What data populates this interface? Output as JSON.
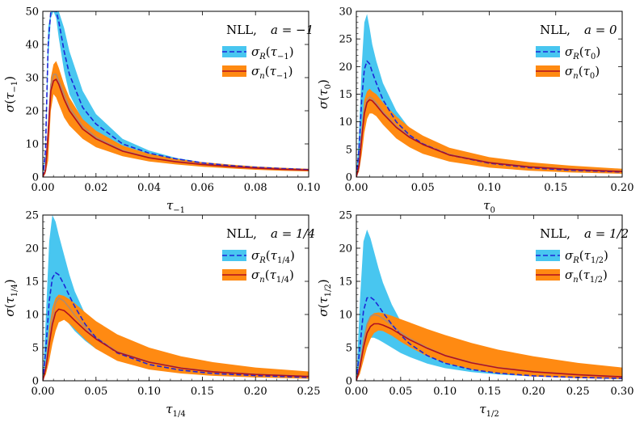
{
  "chart_data": [
    {
      "type": "line",
      "title": "NLL, a = −1",
      "legend": {
        "title": "NLL,",
        "param": "a = −1",
        "placement": "top-right",
        "entries": [
          "σR(τ−1)",
          "σn(τ−1)"
        ]
      },
      "xlabel": "τ−1",
      "ylabel": "σ(τ−1)",
      "xlim": [
        0,
        0.1
      ],
      "ylim": [
        0,
        50
      ],
      "xticks": [
        0,
        0.02,
        0.04,
        0.06,
        0.08,
        0.1
      ],
      "xtick_labels": [
        "0.00",
        "0.02",
        "0.04",
        "0.06",
        "0.08",
        "0.10"
      ],
      "yticks": [
        0,
        10,
        20,
        30,
        40,
        50
      ],
      "ytick_labels": [
        "0",
        "10",
        "20",
        "30",
        "40",
        "50"
      ],
      "x": [
        0,
        0.001,
        0.002,
        0.003,
        0.004,
        0.005,
        0.006,
        0.008,
        0.01,
        0.015,
        0.02,
        0.03,
        0.04,
        0.05,
        0.06,
        0.07,
        0.08,
        0.09,
        0.1
      ],
      "series": [
        {
          "name": "σR band",
          "role": "band",
          "color": "#48c6f0",
          "lower": [
            0,
            5,
            35,
            48,
            50,
            48,
            42,
            32,
            25,
            17,
            13,
            8.7,
            6.5,
            5.1,
            4.1,
            3.4,
            2.9,
            2.5,
            2.2
          ],
          "upper": [
            0,
            8,
            45,
            50,
            50,
            50,
            50,
            45,
            38,
            26,
            19,
            11.5,
            8.0,
            5.8,
            4.5,
            3.6,
            3.0,
            2.6,
            2.3
          ]
        },
        {
          "name": "σn band",
          "role": "band",
          "color": "#ff8a12",
          "lower": [
            0,
            1,
            5,
            20,
            25,
            24,
            22,
            18,
            15.5,
            11.5,
            9.0,
            6.3,
            4.7,
            3.8,
            3.1,
            2.6,
            2.2,
            1.9,
            1.7
          ],
          "upper": [
            0,
            2,
            15,
            30,
            34,
            35,
            33,
            28,
            24,
            17.5,
            14,
            9.5,
            7.0,
            5.5,
            4.5,
            3.8,
            3.2,
            2.8,
            2.5
          ]
        },
        {
          "name": "σR(τ−1)",
          "role": "line",
          "style": "dashed",
          "color": "#1d27d6",
          "values": [
            0,
            8,
            40,
            50,
            50,
            50,
            47,
            38,
            31,
            21,
            16,
            10.0,
            7.2,
            5.5,
            4.3,
            3.5,
            2.95,
            2.55,
            2.25
          ]
        },
        {
          "name": "σn(τ−1)",
          "role": "line",
          "style": "solid",
          "color": "#b01020",
          "values": [
            0,
            2,
            13,
            26,
            29,
            29.5,
            28,
            23.5,
            20,
            14.5,
            11.5,
            7.8,
            5.8,
            4.6,
            3.8,
            3.2,
            2.7,
            2.35,
            2.1
          ]
        },
        {
          "name": "σn alt",
          "role": "line",
          "style": "solid",
          "color": "#b28a6e",
          "values": [
            0,
            2,
            14,
            28,
            31,
            31,
            29,
            25,
            21,
            15.3,
            12,
            8.0,
            5.9,
            4.7,
            3.85,
            3.25,
            2.75,
            2.4,
            2.15
          ]
        }
      ]
    },
    {
      "type": "line",
      "title": "NLL, a = 0",
      "legend": {
        "title": "NLL,",
        "param": "a = 0",
        "placement": "top-right",
        "entries": [
          "σR(τ0)",
          "σn(τ0)"
        ]
      },
      "xlabel": "τ0",
      "ylabel": "σ(τ0)",
      "xlim": [
        0,
        0.2
      ],
      "ylim": [
        0,
        30
      ],
      "xticks": [
        0,
        0.05,
        0.1,
        0.15,
        0.2
      ],
      "xtick_labels": [
        "0.00",
        "0.05",
        "0.10",
        "0.15",
        "0.20"
      ],
      "yticks": [
        0,
        5,
        10,
        15,
        20,
        25,
        30
      ],
      "ytick_labels": [
        "0",
        "5",
        "10",
        "15",
        "20",
        "25",
        "30"
      ],
      "x": [
        0,
        0.002,
        0.004,
        0.006,
        0.008,
        0.01,
        0.012,
        0.015,
        0.02,
        0.03,
        0.04,
        0.05,
        0.07,
        0.1,
        0.13,
        0.16,
        0.2
      ],
      "series": [
        {
          "name": "σR band",
          "role": "band",
          "color": "#48c6f0",
          "lower": [
            0,
            3,
            9,
            13,
            15,
            15.5,
            15,
            14,
            12,
            9,
            7,
            5.5,
            3.7,
            2.3,
            1.6,
            1.2,
            0.85
          ],
          "upper": [
            0,
            8,
            20,
            28,
            29.5,
            27,
            24,
            21,
            17,
            12,
            8.8,
            6.6,
            4.2,
            2.5,
            1.7,
            1.25,
            0.9
          ]
        },
        {
          "name": "σn band",
          "role": "band",
          "color": "#ff8a12",
          "lower": [
            0,
            1,
            4,
            8,
            10.5,
            11.5,
            11.5,
            11,
            9.5,
            7,
            5.4,
            4.2,
            2.8,
            1.7,
            1.15,
            0.85,
            0.6
          ],
          "upper": [
            0,
            3,
            9,
            14,
            15.5,
            16,
            15.5,
            15,
            13.5,
            11,
            9,
            7.5,
            5.3,
            3.6,
            2.7,
            2.1,
            1.5
          ]
        },
        {
          "name": "σR(τ0)",
          "role": "line",
          "style": "dashed",
          "color": "#1d27d6",
          "values": [
            0,
            5,
            14,
            19.5,
            21,
            20.5,
            19,
            17,
            14,
            10,
            7.6,
            6,
            4.0,
            2.5,
            1.7,
            1.25,
            0.9
          ]
        },
        {
          "name": "σn(τ0)",
          "role": "line",
          "style": "solid",
          "color": "#b01020",
          "values": [
            0,
            2,
            7,
            11.5,
            13.5,
            14,
            13.8,
            13,
            11.5,
            9,
            7.2,
            5.9,
            4.0,
            2.6,
            1.85,
            1.4,
            1.0
          ]
        },
        {
          "name": "σn alt",
          "role": "line",
          "style": "solid",
          "color": "#b28a6e",
          "values": [
            0,
            2,
            7.5,
            12,
            14,
            14.5,
            14.2,
            13.4,
            11.8,
            9.2,
            7.4,
            6.0,
            4.1,
            2.65,
            1.9,
            1.45,
            1.05
          ]
        }
      ]
    },
    {
      "type": "line",
      "title": "NLL, a = 1/4",
      "legend": {
        "title": "NLL,",
        "param": "a = 1/4",
        "placement": "top-right",
        "entries": [
          "σR(τ1/4)",
          "σn(τ1/4)"
        ]
      },
      "xlabel": "τ1/4",
      "ylabel": "σ(τ1/4)",
      "xlim": [
        0,
        0.25
      ],
      "ylim": [
        0,
        25
      ],
      "xticks": [
        0,
        0.05,
        0.1,
        0.15,
        0.2,
        0.25
      ],
      "xtick_labels": [
        "0.00",
        "0.05",
        "0.10",
        "0.15",
        "0.20",
        "0.25"
      ],
      "yticks": [
        0,
        5,
        10,
        15,
        20,
        25
      ],
      "ytick_labels": [
        "0",
        "5",
        "10",
        "15",
        "20",
        "25"
      ],
      "x": [
        0,
        0.003,
        0.006,
        0.009,
        0.012,
        0.015,
        0.02,
        0.025,
        0.03,
        0.04,
        0.05,
        0.07,
        0.1,
        0.13,
        0.16,
        0.2,
        0.25
      ],
      "series": [
        {
          "name": "σR band",
          "role": "band",
          "color": "#48c6f0",
          "lower": [
            0,
            2,
            6,
            9,
            10.5,
            10.5,
            9.5,
            8.5,
            7.5,
            6,
            4.8,
            3.3,
            2.1,
            1.4,
            1.0,
            0.7,
            0.45
          ],
          "upper": [
            0,
            10,
            21,
            25,
            24,
            22,
            19,
            16,
            13.5,
            10,
            7.5,
            4.8,
            2.7,
            1.7,
            1.2,
            0.8,
            0.5
          ]
        },
        {
          "name": "σn band",
          "role": "band",
          "color": "#ff8a12",
          "lower": [
            0,
            1,
            3,
            5.5,
            7.5,
            8.8,
            9.2,
            8.6,
            7.8,
            6.2,
            4.8,
            3.0,
            1.7,
            1.1,
            0.75,
            0.5,
            0.3
          ],
          "upper": [
            0,
            3,
            8,
            11,
            12.5,
            13,
            12.8,
            12.3,
            11.7,
            10.3,
            9,
            7,
            5,
            3.7,
            2.8,
            2,
            1.4
          ]
        },
        {
          "name": "σR(τ1/4)",
          "role": "line",
          "style": "dashed",
          "color": "#1d27d6",
          "values": [
            0,
            5,
            12,
            15.5,
            16.3,
            16,
            14.5,
            12.8,
            11.2,
            8.5,
            6.5,
            4.2,
            2.45,
            1.6,
            1.1,
            0.78,
            0.5
          ]
        },
        {
          "name": "σn(τ1/4)",
          "role": "line",
          "style": "solid",
          "color": "#b01020",
          "values": [
            0,
            2,
            5.5,
            8.5,
            10.3,
            10.8,
            10.6,
            9.9,
            9.1,
            7.6,
            6.3,
            4.3,
            2.8,
            1.9,
            1.35,
            0.95,
            0.65
          ]
        },
        {
          "name": "σn alt",
          "role": "line",
          "style": "solid",
          "color": "#b28a6e",
          "values": [
            0,
            2,
            6,
            9.5,
            11.8,
            12.5,
            12,
            11,
            9.9,
            8.0,
            6.5,
            4.4,
            2.85,
            1.95,
            1.4,
            1.0,
            0.68
          ]
        }
      ]
    },
    {
      "type": "line",
      "title": "NLL, a = 1/2",
      "legend": {
        "title": "NLL,",
        "param": "a = 1/2",
        "placement": "top-right",
        "entries": [
          "σR(τ1/2)",
          "σn(τ1/2)"
        ]
      },
      "xlabel": "τ1/2",
      "ylabel": "σ(τ1/2)",
      "xlim": [
        0,
        0.3
      ],
      "ylim": [
        0,
        25
      ],
      "xticks": [
        0,
        0.05,
        0.1,
        0.15,
        0.2,
        0.25,
        0.3
      ],
      "xtick_labels": [
        "0.00",
        "0.05",
        "0.10",
        "0.15",
        "0.20",
        "0.25",
        "0.30"
      ],
      "yticks": [
        0,
        5,
        10,
        15,
        20,
        25
      ],
      "ytick_labels": [
        "0",
        "5",
        "10",
        "15",
        "20",
        "25"
      ],
      "x": [
        0,
        0.004,
        0.008,
        0.012,
        0.016,
        0.02,
        0.025,
        0.03,
        0.04,
        0.05,
        0.06,
        0.08,
        0.1,
        0.13,
        0.16,
        0.2,
        0.25,
        0.3
      ],
      "series": [
        {
          "name": "σR band",
          "role": "band",
          "color": "#48c6f0",
          "lower": [
            0,
            2,
            4.5,
            6,
            6.5,
            6.5,
            6.2,
            5.8,
            5.0,
            4.2,
            3.6,
            2.6,
            1.9,
            1.3,
            0.95,
            0.65,
            0.45,
            0.3
          ],
          "upper": [
            0,
            12,
            21,
            22.8,
            21.5,
            19.5,
            17,
            14.8,
            11.5,
            9,
            7.2,
            4.8,
            3.4,
            2.1,
            1.4,
            0.9,
            0.6,
            0.4
          ]
        },
        {
          "name": "σn band",
          "role": "band",
          "color": "#ff8a12",
          "lower": [
            0,
            1,
            3,
            5,
            6.3,
            7.2,
            7.6,
            7.5,
            6.8,
            5.9,
            5.1,
            3.7,
            2.7,
            1.7,
            1.1,
            0.65,
            0.4,
            0.25
          ],
          "upper": [
            0,
            3,
            6.5,
            8.7,
            9.8,
            10.2,
            10.3,
            10.2,
            9.8,
            9.3,
            8.8,
            7.8,
            6.9,
            5.7,
            4.7,
            3.7,
            2.7,
            2.0
          ]
        },
        {
          "name": "σR(τ1/2)",
          "role": "line",
          "style": "dashed",
          "color": "#1d27d6",
          "values": [
            0,
            5,
            10.5,
            12.5,
            12.6,
            12.2,
            11.3,
            10.3,
            8.5,
            6.9,
            5.6,
            3.8,
            2.65,
            1.7,
            1.15,
            0.75,
            0.5,
            0.35
          ]
        },
        {
          "name": "σn(τ1/2)",
          "role": "line",
          "style": "solid",
          "color": "#b01020",
          "values": [
            0,
            2,
            5,
            7.2,
            8.2,
            8.6,
            8.6,
            8.4,
            7.8,
            7.0,
            6.2,
            4.9,
            3.8,
            2.7,
            1.95,
            1.35,
            0.9,
            0.6
          ]
        },
        {
          "name": "σn alt",
          "role": "line",
          "style": "solid",
          "color": "#b28a6e",
          "values": [
            0,
            2,
            5.8,
            8.5,
            9.7,
            10.0,
            9.8,
            9.4,
            8.4,
            7.3,
            6.4,
            5.0,
            3.85,
            2.75,
            2.0,
            1.4,
            0.93,
            0.62
          ]
        }
      ]
    }
  ]
}
